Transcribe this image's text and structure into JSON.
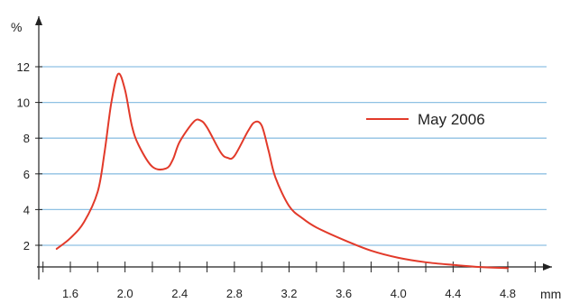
{
  "chart_data": {
    "type": "line",
    "title": "",
    "xlabel": "mm",
    "ylabel": "%",
    "xlim": [
      1.5,
      4.9
    ],
    "ylim": [
      0,
      13
    ],
    "x_ticks": [
      1.6,
      2.0,
      2.4,
      2.8,
      3.2,
      3.6,
      4.0,
      4.4,
      4.8
    ],
    "x_tick_labels": [
      "1.6",
      "2.0",
      "2.4",
      "2.8",
      "3.2",
      "3.6",
      "4.0",
      "4.4",
      "4.8"
    ],
    "y_ticks": [
      2,
      4,
      6,
      8,
      10,
      12
    ],
    "y_tick_labels": [
      "2",
      "4",
      "6",
      "8",
      "10",
      "12"
    ],
    "grid": "horizontal",
    "legend_position": "right",
    "colors": {
      "series": "#e23a2a",
      "grid": "#8fc1e3",
      "axis": "#222222"
    },
    "series": [
      {
        "name": "May 2006",
        "x": [
          1.5,
          1.6,
          1.7,
          1.8,
          1.85,
          1.9,
          1.95,
          2.0,
          2.05,
          2.1,
          2.2,
          2.3,
          2.35,
          2.4,
          2.5,
          2.55,
          2.6,
          2.7,
          2.75,
          2.8,
          2.9,
          2.95,
          3.0,
          3.05,
          3.1,
          3.2,
          3.3,
          3.4,
          3.6,
          3.8,
          4.0,
          4.2,
          4.4,
          4.6,
          4.8
        ],
        "values": [
          1.8,
          2.4,
          3.3,
          5.0,
          7.2,
          10.0,
          11.6,
          10.7,
          8.7,
          7.6,
          6.4,
          6.3,
          6.8,
          7.8,
          8.9,
          9.0,
          8.6,
          7.2,
          6.9,
          7.0,
          8.4,
          8.9,
          8.7,
          7.3,
          5.8,
          4.2,
          3.5,
          3.0,
          2.3,
          1.7,
          1.3,
          1.05,
          0.9,
          0.78,
          0.72
        ]
      }
    ]
  }
}
